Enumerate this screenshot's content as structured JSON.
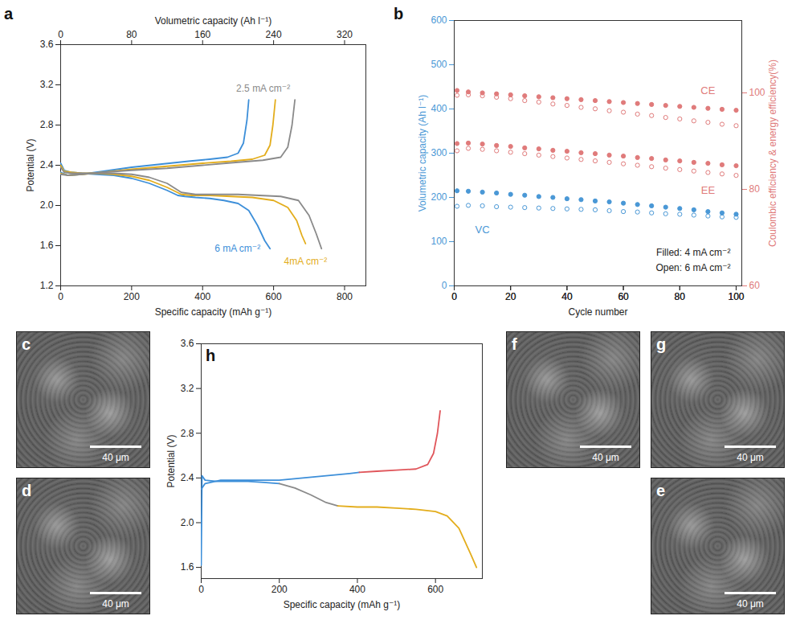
{
  "chart_data": [
    {
      "panel": "a",
      "type": "line",
      "xlabel": "Specific capacity (mAh g⁻¹)",
      "ylabel": "Potential (V)",
      "x2label": "Volumetric capacity (Ah l⁻¹)",
      "xlim": [
        0,
        860
      ],
      "xticks": [
        0,
        200,
        400,
        600,
        800
      ],
      "x2lim": [
        0,
        344
      ],
      "x2ticks": [
        0,
        80,
        160,
        240,
        320
      ],
      "ylim": [
        1.2,
        3.6
      ],
      "yticks": [
        1.2,
        1.6,
        {
          "value": 2,
          "label": "2.0"
        },
        2.4,
        2.8,
        3.2,
        3.6
      ],
      "series": [
        {
          "name": "6 mA cm⁻²",
          "color": "#3d8fd9",
          "discharge": {
            "x": [
              0,
              10,
              30,
              60,
              100,
              150,
              200,
              250,
              300,
              330,
              350,
              380,
              420,
              460,
              500,
              530,
              555,
              575,
              590
            ],
            "values": [
              2.42,
              2.35,
              2.33,
              2.32,
              2.31,
              2.3,
              2.27,
              2.22,
              2.15,
              2.1,
              2.09,
              2.08,
              2.07,
              2.05,
              2.02,
              1.95,
              1.8,
              1.65,
              1.57
            ]
          },
          "charge": {
            "x": [
              0,
              20,
              60,
              120,
              200,
              280,
              360,
              420,
              470,
              500,
              515,
              525,
              530
            ],
            "values": [
              2.33,
              2.3,
              2.31,
              2.34,
              2.38,
              2.41,
              2.44,
              2.46,
              2.48,
              2.52,
              2.62,
              2.85,
              3.05
            ]
          }
        },
        {
          "name": "4mA cm⁻²",
          "color": "#e3ad1c",
          "discharge": {
            "x": [
              0,
              10,
              30,
              60,
              100,
              150,
              200,
              250,
              300,
              340,
              370,
              420,
              480,
              540,
              600,
              640,
              665,
              680,
              690
            ],
            "values": [
              2.4,
              2.34,
              2.33,
              2.32,
              2.32,
              2.31,
              2.29,
              2.25,
              2.18,
              2.11,
              2.1,
              2.1,
              2.09,
              2.08,
              2.05,
              1.98,
              1.85,
              1.7,
              1.62
            ]
          },
          "charge": {
            "x": [
              0,
              20,
              60,
              120,
              200,
              300,
              400,
              480,
              540,
              575,
              590,
              598,
              605
            ],
            "values": [
              2.32,
              2.3,
              2.31,
              2.33,
              2.36,
              2.39,
              2.42,
              2.44,
              2.46,
              2.5,
              2.6,
              2.8,
              3.05
            ]
          }
        },
        {
          "name": "2.5 mA cm⁻²",
          "color": "#8a8a8a",
          "discharge": {
            "x": [
              0,
              10,
              30,
              60,
              100,
              150,
              200,
              250,
              300,
              340,
              380,
              440,
              500,
              560,
              620,
              670,
              700,
              720,
              735
            ],
            "values": [
              2.38,
              2.33,
              2.32,
              2.32,
              2.32,
              2.32,
              2.31,
              2.28,
              2.22,
              2.13,
              2.11,
              2.11,
              2.11,
              2.1,
              2.09,
              2.05,
              1.9,
              1.72,
              1.57
            ]
          },
          "charge": {
            "x": [
              0,
              20,
              60,
              120,
              200,
              300,
              400,
              500,
              570,
              620,
              640,
              652,
              660
            ],
            "values": [
              2.31,
              2.3,
              2.31,
              2.33,
              2.35,
              2.37,
              2.4,
              2.43,
              2.45,
              2.48,
              2.58,
              2.8,
              3.05
            ]
          }
        }
      ]
    },
    {
      "panel": "b",
      "type": "scatter",
      "xlabel": "Cycle number",
      "ylabel": "Volumetric capacity (Ah l⁻¹)",
      "y2label": "Coulombic efficiency & energy efficiency(%)",
      "xlim": [
        0,
        102
      ],
      "xticks": [
        0,
        20,
        40,
        60,
        80,
        100
      ],
      "ylim": [
        0,
        600
      ],
      "yticks": [
        0,
        100,
        200,
        300,
        400,
        500,
        600
      ],
      "y2lim": [
        60,
        115
      ],
      "y2ticks": [
        60,
        80,
        100
      ],
      "x": [
        1,
        5,
        10,
        15,
        20,
        25,
        30,
        35,
        40,
        45,
        50,
        55,
        60,
        65,
        70,
        75,
        80,
        85,
        90,
        95,
        100
      ],
      "series": [
        {
          "name": "VC",
          "color": "#4a98d6",
          "marker": "circle",
          "filled": [
            215,
            214,
            212,
            210,
            207,
            205,
            202,
            200,
            197,
            195,
            192,
            190,
            187,
            184,
            181,
            178,
            175,
            172,
            168,
            165,
            162
          ],
          "open": [
            180,
            182,
            181,
            179,
            178,
            177,
            176,
            175,
            174,
            173,
            172,
            170,
            168,
            167,
            165,
            163,
            162,
            160,
            158,
            156,
            155
          ]
        },
        {
          "name": "CE",
          "color": "#e07b7b",
          "marker": "circle",
          "axis": "y2",
          "filled": [
            100.5,
            100.2,
            100,
            99.8,
            99.6,
            99.4,
            99.2,
            99,
            98.8,
            98.6,
            98.4,
            98.2,
            98,
            97.8,
            97.6,
            97.4,
            97.2,
            97,
            96.8,
            96.6,
            96.4
          ],
          "open": [
            99.5,
            99.6,
            99.4,
            99.1,
            98.8,
            98.4,
            98.1,
            97.7,
            97.4,
            97,
            96.7,
            96.3,
            96,
            95.6,
            95.3,
            94.9,
            94.6,
            94.2,
            93.9,
            93.5,
            93.2
          ]
        },
        {
          "name": "EE",
          "color": "#e07b7b",
          "marker": "circle",
          "axis": "y2",
          "filled": [
            89.5,
            89.6,
            89.4,
            89.1,
            88.9,
            88.6,
            88.4,
            88.1,
            87.9,
            87.6,
            87.4,
            87.1,
            86.9,
            86.6,
            86.4,
            86.1,
            85.9,
            85.6,
            85.4,
            85.1,
            84.9
          ],
          "open": [
            88,
            88.5,
            88.3,
            88,
            87.7,
            87.4,
            87.1,
            86.8,
            86.5,
            86.2,
            85.9,
            85.6,
            85.3,
            85,
            84.7,
            84.4,
            84.1,
            83.8,
            83.5,
            83.2,
            82.9
          ]
        }
      ],
      "annotations": [
        {
          "text": "Filled: 4 mA cm⁻²",
          "x": 98,
          "y": 75
        },
        {
          "text": "Open: 6 mA cm⁻²",
          "x": 98,
          "y": 40
        }
      ]
    },
    {
      "panel": "h",
      "type": "line",
      "xlabel": "Specific capacity (mAh g⁻¹)",
      "ylabel": "Potential (V)",
      "xlim": [
        0,
        720
      ],
      "xticks": [
        0,
        200,
        400,
        600
      ],
      "ylim": [
        1.5,
        3.6
      ],
      "yticks": [
        1.6,
        {
          "value": 2,
          "label": "2.0"
        },
        2.4,
        2.8,
        3.2,
        3.6
      ],
      "series": [
        {
          "color": "#3d8fd9",
          "x": [
            0,
            2,
            10,
            40,
            80,
            120,
            160,
            200
          ],
          "values": [
            1.62,
            2.42,
            2.38,
            2.37,
            2.37,
            2.37,
            2.36,
            2.35
          ]
        },
        {
          "color": "#8a8a8a",
          "x": [
            200,
            240,
            280,
            320,
            350
          ],
          "values": [
            2.35,
            2.31,
            2.25,
            2.18,
            2.15
          ]
        },
        {
          "color": "#e3ad1c",
          "x": [
            350,
            400,
            450,
            500,
            550,
            600,
            630,
            660,
            690,
            705
          ],
          "values": [
            2.15,
            2.14,
            2.14,
            2.13,
            2.12,
            2.1,
            2.06,
            1.95,
            1.72,
            1.6
          ]
        },
        {
          "color": "#3d8fd9",
          "x": [
            0,
            10,
            50,
            100,
            150,
            200,
            260,
            320,
            380,
            405
          ],
          "values": [
            2.3,
            2.35,
            2.38,
            2.38,
            2.38,
            2.38,
            2.4,
            2.42,
            2.44,
            2.45
          ]
        },
        {
          "color": "#e0565b",
          "x": [
            405,
            450,
            500,
            550,
            580,
            595,
            605,
            612
          ],
          "values": [
            2.45,
            2.46,
            2.47,
            2.48,
            2.52,
            2.62,
            2.8,
            3.0
          ]
        }
      ]
    }
  ],
  "images": [
    {
      "panel": "c",
      "scale_bar": "40 μm"
    },
    {
      "panel": "d",
      "scale_bar": "40 μm"
    },
    {
      "panel": "e",
      "scale_bar": "40 μm"
    },
    {
      "panel": "f",
      "scale_bar": "40 μm"
    },
    {
      "panel": "g",
      "scale_bar": "40 μm"
    }
  ]
}
